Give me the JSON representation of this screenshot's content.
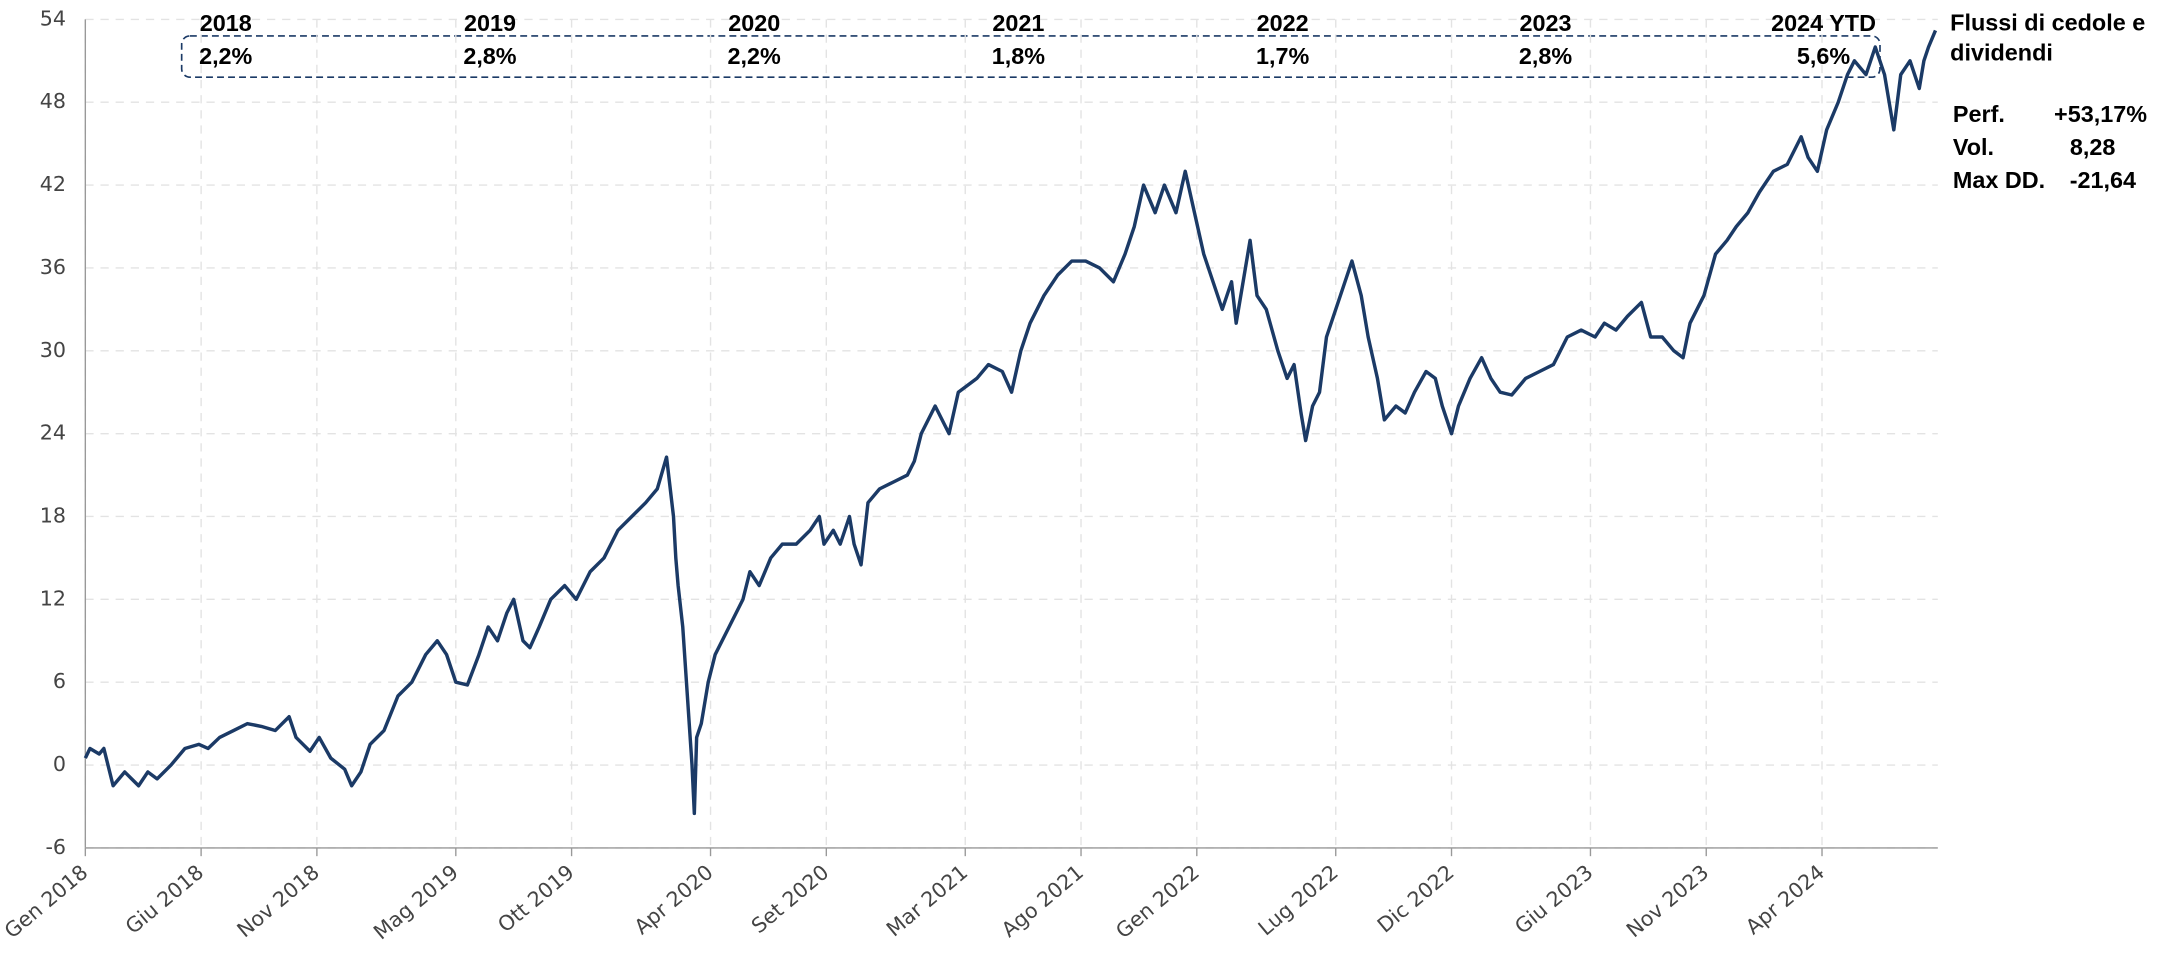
{
  "chart_data": {
    "type": "line",
    "x": [
      0.0,
      0.2,
      0.6,
      0.8,
      1.2,
      1.7,
      2.0,
      2.3,
      2.7,
      3.1,
      3.7,
      4.3,
      4.9,
      5.3,
      5.8,
      6.4,
      7.0,
      7.6,
      8.2,
      8.8,
      9.1,
      9.7,
      10.1,
      10.6,
      11.2,
      11.5,
      11.9,
      12.3,
      12.9,
      13.5,
      14.1,
      14.7,
      15.2,
      15.6,
      16.0,
      16.5,
      17.0,
      17.4,
      17.8,
      18.2,
      18.5,
      18.9,
      19.2,
      19.6,
      20.1,
      20.7,
      21.2,
      21.8,
      22.4,
      22.7,
      23.0,
      23.6,
      24.2,
      24.7,
      25.1,
      25.4,
      25.5,
      25.6,
      25.8,
      26.0,
      26.2,
      26.3,
      26.4,
      26.6,
      26.9,
      27.2,
      27.8,
      28.4,
      28.7,
      29.1,
      29.6,
      30.1,
      30.7,
      31.3,
      31.7,
      31.9,
      32.3,
      32.6,
      33.0,
      33.2,
      33.5,
      33.8,
      34.3,
      34.9,
      35.5,
      35.8,
      36.1,
      36.7,
      37.3,
      37.7,
      38.5,
      39.0,
      39.6,
      40.0,
      40.4,
      40.8,
      41.4,
      42.0,
      42.6,
      43.2,
      43.8,
      44.4,
      44.9,
      45.3,
      45.7,
      46.2,
      46.6,
      47.1,
      47.5,
      47.9,
      48.3,
      48.7,
      49.1,
      49.5,
      49.7,
      50.1,
      50.3,
      50.6,
      51.0,
      51.5,
      51.9,
      52.2,
      52.5,
      52.7,
      53.0,
      53.3,
      53.6,
      54.0,
      54.4,
      54.7,
      55.1,
      55.4,
      55.8,
      56.1,
      56.6,
      57.0,
      57.4,
      57.9,
      58.3,
      58.6,
      59.0,
      59.3,
      59.8,
      60.3,
      60.7,
      61.1,
      61.6,
      62.2,
      62.8,
      63.4,
      64.0,
      64.6,
      65.2,
      65.6,
      66.1,
      66.6,
      67.2,
      67.6,
      68.1,
      68.6,
      69.0,
      69.3,
      69.9,
      70.4,
      70.9,
      71.3,
      71.8,
      72.3,
      72.9,
      73.5,
      74.1,
      74.4,
      74.8,
      75.2,
      75.7,
      76.1,
      76.4,
      76.9,
      77.3,
      77.7,
      78.1,
      78.4,
      78.8,
      79.2,
      79.4,
      79.6,
      79.9
    ],
    "series": [
      {
        "color": "#1b3a66",
        "values": [
          0.5,
          1.2,
          0.8,
          1.2,
          -1.5,
          -0.5,
          -1,
          -1.5,
          -0.5,
          -1,
          0,
          1.2,
          1.5,
          1.2,
          2,
          2.5,
          3,
          2.8,
          2.5,
          3.5,
          2,
          1,
          2,
          0.5,
          -0.3,
          -1.5,
          -0.5,
          1.5,
          2.5,
          5,
          6,
          8,
          9,
          8,
          6,
          5.8,
          8,
          10,
          9,
          11,
          12,
          9,
          8.5,
          10,
          12,
          13,
          12,
          14,
          15,
          16,
          17,
          18,
          19,
          20,
          22.3,
          18,
          15,
          13,
          10,
          5,
          0,
          -3.5,
          2,
          3,
          6,
          8,
          10,
          12,
          14,
          13,
          15,
          16,
          16,
          17,
          18,
          16,
          17,
          16,
          18,
          16,
          14.5,
          19,
          20,
          20.5,
          21,
          22,
          24,
          26,
          24,
          27,
          28,
          29,
          28.5,
          27,
          30,
          32,
          34,
          35.5,
          36.5,
          36.5,
          36,
          35,
          37,
          39,
          42,
          40,
          42,
          40,
          43,
          40,
          37,
          35,
          33,
          35,
          32,
          36,
          38,
          34,
          33,
          30,
          28,
          29,
          25.5,
          23.5,
          26,
          27,
          31,
          33,
          35,
          36.5,
          34,
          31,
          28,
          25,
          26,
          25.5,
          27,
          28.5,
          28,
          26,
          24,
          26,
          28,
          29.5,
          28,
          27,
          26.8,
          28,
          28.5,
          29,
          31,
          31.5,
          31,
          32,
          31.5,
          32.5,
          33.5,
          31,
          31,
          30,
          29.5,
          32,
          34,
          37,
          38,
          39,
          40,
          41.5,
          43,
          43.5,
          45.5,
          44,
          43,
          46,
          48,
          50,
          51,
          50,
          52,
          50,
          46,
          50,
          51,
          49,
          51,
          52,
          53.2
        ]
      }
    ],
    "xlim": [
      0,
      80
    ],
    "xticks": [
      {
        "value": 0,
        "label": "Gen 2018"
      },
      {
        "value": 5,
        "label": "Giu 2018"
      },
      {
        "value": 10,
        "label": "Nov 2018"
      },
      {
        "value": 16,
        "label": "Mag 2019"
      },
      {
        "value": 21,
        "label": "Ott 2019"
      },
      {
        "value": 27,
        "label": "Apr 2020"
      },
      {
        "value": 32,
        "label": "Set 2020"
      },
      {
        "value": 38,
        "label": "Mar 2021"
      },
      {
        "value": 43,
        "label": "Ago 2021"
      },
      {
        "value": 48,
        "label": "Gen 2022"
      },
      {
        "value": 54,
        "label": "Lug 2022"
      },
      {
        "value": 59,
        "label": "Dic 2022"
      },
      {
        "value": 65,
        "label": "Giu 2023"
      },
      {
        "value": 70,
        "label": "Nov 2023"
      },
      {
        "value": 75,
        "label": "Apr 2024"
      }
    ],
    "ylim": [
      -6,
      54
    ],
    "yticks": [
      -6,
      0,
      6,
      12,
      18,
      24,
      30,
      36,
      42,
      48,
      54
    ],
    "grid": true,
    "yearly_yields": {
      "years": [
        "2018",
        "2019",
        "2020",
        "2021",
        "2022",
        "2023",
        "2024 YTD"
      ],
      "yields": [
        "2,2%",
        "2,8%",
        "2,2%",
        "1,8%",
        "1,7%",
        "2,8%",
        "5,6%"
      ]
    },
    "side_title": "Flussi di cedole e dividendi",
    "stats": [
      {
        "label": "Perf.",
        "value": "+53,17%"
      },
      {
        "label": "Vol.",
        "value": "8,28"
      },
      {
        "label": "Max DD.",
        "value": "-21,64"
      }
    ]
  }
}
